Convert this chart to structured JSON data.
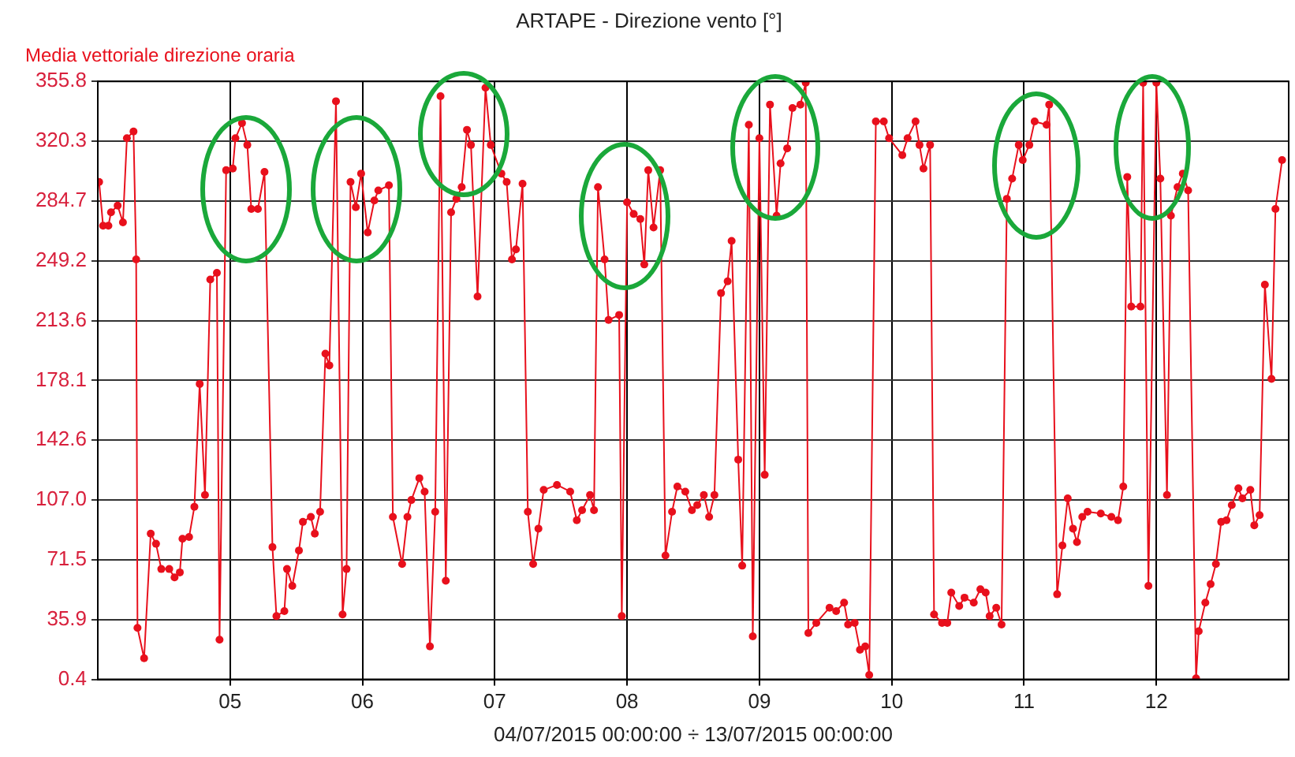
{
  "chart_data": {
    "type": "line",
    "title": "ARTAPE - Direzione vento [°]",
    "xlabel": "04/07/2015 00:00:00 ÷ 13/07/2015 00:00:00",
    "xlim": [
      4,
      13
    ],
    "xticks": [
      {
        "value": 5,
        "label": "05"
      },
      {
        "value": 6,
        "label": "06"
      },
      {
        "value": 7,
        "label": "07"
      },
      {
        "value": 8,
        "label": "08"
      },
      {
        "value": 9,
        "label": "09"
      },
      {
        "value": 10,
        "label": "10"
      },
      {
        "value": 11,
        "label": "11"
      },
      {
        "value": 12,
        "label": "12"
      }
    ],
    "ylim": [
      0.4,
      355.8
    ],
    "yticks": [
      0.4,
      35.9,
      71.5,
      {
        "value": 107,
        "label": "107.0"
      },
      142.6,
      178.1,
      213.6,
      249.2,
      284.7,
      320.3,
      355.8
    ],
    "grid": true,
    "legend": "top left",
    "marker": "circle",
    "line_style": "solid",
    "series": [
      {
        "name": "Media vettoriale direzione oraria",
        "color": "#e8101c",
        "x": [
          4.01,
          4.04,
          4.08,
          4.1,
          4.15,
          4.19,
          4.22,
          4.27,
          4.29,
          4.3,
          4.35,
          4.4,
          4.44,
          4.48,
          4.54,
          4.58,
          4.62,
          4.64,
          4.69,
          4.73,
          4.77,
          4.81,
          4.85,
          4.9,
          4.92,
          4.97,
          5.02,
          5.04,
          5.09,
          5.13,
          5.16,
          5.21,
          5.26,
          5.32,
          5.35,
          5.41,
          5.43,
          5.47,
          5.52,
          5.55,
          5.61,
          5.64,
          5.68,
          5.72,
          5.75,
          5.8,
          5.85,
          5.88,
          5.91,
          5.95,
          5.99,
          6.04,
          6.09,
          6.12,
          6.2,
          6.23,
          6.3,
          6.34,
          6.37,
          6.43,
          6.47,
          6.51,
          6.55,
          6.59,
          6.63,
          6.67,
          6.71,
          6.75,
          6.79,
          6.82,
          6.87,
          6.93,
          6.97,
          7.05,
          7.09,
          7.13,
          7.16,
          7.21,
          7.25,
          7.29,
          7.33,
          7.37,
          7.47,
          7.57,
          7.62,
          7.66,
          7.72,
          7.75,
          7.78,
          7.83,
          7.86,
          7.94,
          7.96,
          8.0,
          8.05,
          8.1,
          8.13,
          8.16,
          8.2,
          8.25,
          8.29,
          8.34,
          8.38,
          8.44,
          8.49,
          8.53,
          8.58,
          8.62,
          8.66,
          8.71,
          8.76,
          8.79,
          8.84,
          8.87,
          8.92,
          8.95,
          9.0,
          9.04,
          9.08,
          9.13,
          9.16,
          9.21,
          9.25,
          9.31,
          9.35,
          9.37,
          9.43,
          9.53,
          9.58,
          9.64,
          9.67,
          9.72,
          9.76,
          9.8,
          9.83,
          9.88,
          9.94,
          9.98,
          10.08,
          10.12,
          10.18,
          10.21,
          10.24,
          10.29,
          10.32,
          10.38,
          10.42,
          10.45,
          10.51,
          10.55,
          10.62,
          10.67,
          10.71,
          10.74,
          10.79,
          10.83,
          10.87,
          10.91,
          10.96,
          10.99,
          11.04,
          11.08,
          11.17,
          11.19,
          11.25,
          11.29,
          11.33,
          11.37,
          11.4,
          11.44,
          11.48,
          11.58,
          11.66,
          11.71,
          11.75,
          11.78,
          11.81,
          11.88,
          11.9,
          11.94,
          12.0,
          12.03,
          12.08,
          12.11,
          12.16,
          12.2,
          12.24,
          12.3,
          12.32,
          12.37,
          12.41,
          12.45,
          12.49,
          12.53,
          12.57,
          12.62,
          12.65,
          12.71,
          12.74,
          12.78,
          12.82,
          12.87,
          12.9,
          12.95
        ],
        "values": [
          296,
          270,
          270,
          278,
          282,
          272,
          322,
          326,
          250,
          31,
          13,
          87,
          81,
          66,
          66,
          61,
          64,
          84,
          85,
          103,
          176,
          110,
          238,
          242,
          24,
          303,
          304,
          322,
          331,
          318,
          280,
          280,
          302,
          79,
          38,
          41,
          66,
          56,
          77,
          94,
          97,
          87,
          100,
          194,
          187,
          344,
          39,
          66,
          296,
          281,
          301,
          266,
          285,
          291,
          294,
          97,
          69,
          97,
          107,
          120,
          112,
          20,
          100,
          347,
          59,
          278,
          286,
          293,
          327,
          318,
          228,
          352,
          318,
          301,
          296,
          250,
          256,
          295,
          100,
          69,
          90,
          113,
          116,
          112,
          95,
          101,
          110,
          101,
          293,
          250,
          214,
          217,
          38,
          284,
          277,
          274,
          247,
          303,
          269,
          303,
          74,
          100,
          115,
          112,
          101,
          104,
          110,
          97,
          110,
          230,
          237,
          261,
          131,
          68,
          330,
          26,
          322,
          122,
          342,
          276,
          307,
          316,
          340,
          342,
          355,
          28,
          34,
          43,
          41,
          46,
          33,
          34,
          18,
          20,
          3,
          332,
          332,
          322,
          312,
          322,
          332,
          318,
          304,
          318,
          39,
          34,
          34,
          52,
          44,
          49,
          46,
          54,
          52,
          38,
          43,
          33,
          286,
          298,
          318,
          309,
          318,
          332,
          330,
          342,
          51,
          80,
          108,
          90,
          82,
          97,
          100,
          99,
          97,
          95,
          115,
          299,
          222,
          222,
          355,
          56,
          355,
          298,
          110,
          276,
          293,
          301,
          291,
          1,
          29,
          46,
          57,
          69,
          94,
          95,
          104,
          114,
          108,
          113,
          92,
          98,
          235,
          179,
          280,
          309
        ]
      }
    ]
  }
}
